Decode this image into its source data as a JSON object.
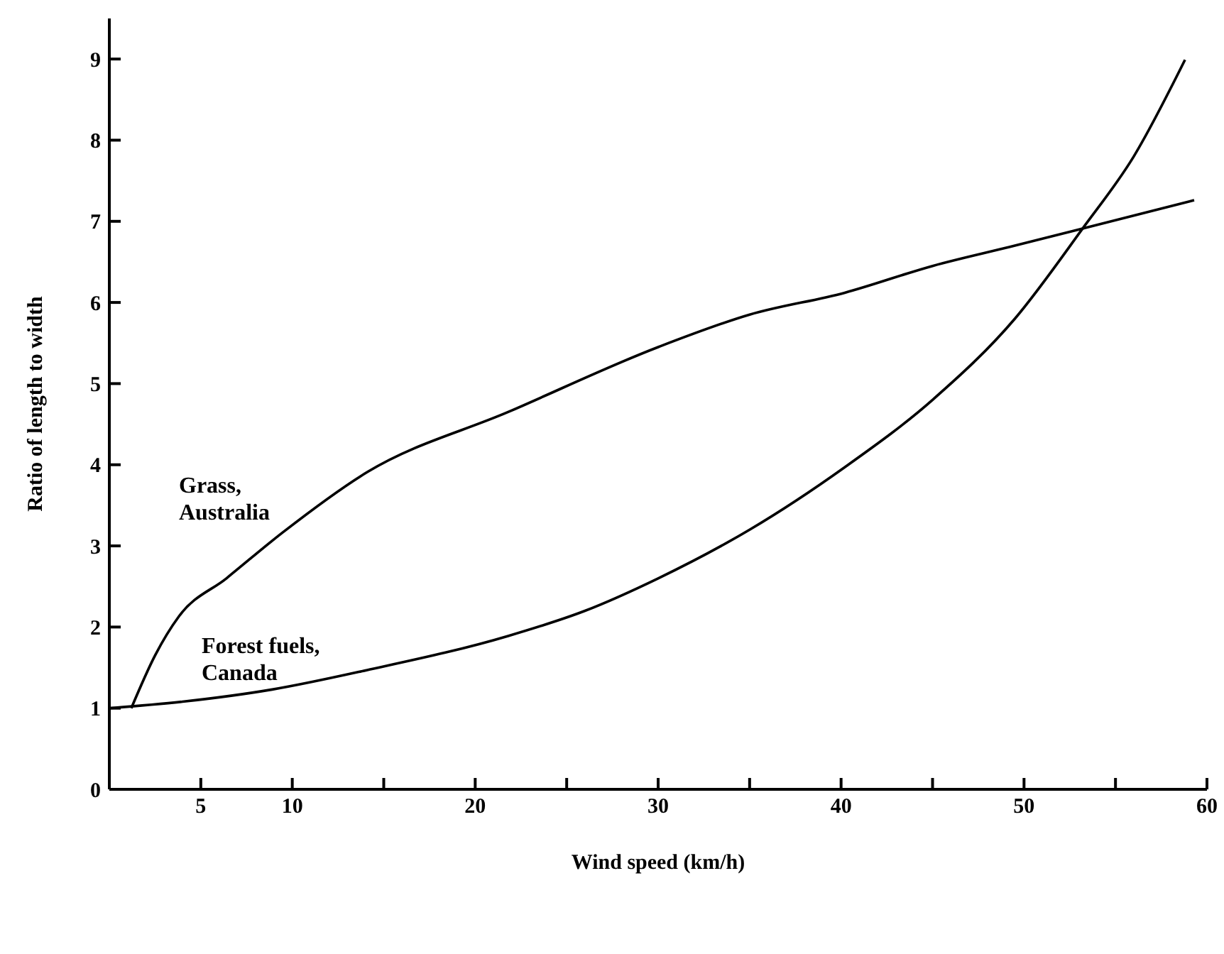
{
  "chart_data": {
    "type": "line",
    "xlabel": "Wind speed (km/h)",
    "ylabel": "Ratio of length to width",
    "xlim": [
      0,
      60
    ],
    "ylim": [
      0,
      9.5
    ],
    "xticks": [
      5,
      10,
      {
        "value": 15,
        "label": null
      },
      20,
      {
        "value": 25,
        "label": null
      },
      30,
      {
        "value": 35,
        "label": null
      },
      40,
      {
        "value": 45,
        "label": null
      },
      50,
      {
        "value": 55,
        "label": null
      },
      60
    ],
    "yticks": [
      0,
      1,
      2,
      3,
      4,
      5,
      6,
      7,
      8,
      9
    ],
    "grid": false,
    "legend": false,
    "marker": "none",
    "line_style": "solid",
    "series": [
      {
        "name": "Grass, Australia",
        "color": "#000000",
        "x": [
          1.2,
          2.5,
          3.8,
          6.4,
          9.5,
          14.1,
          21.8,
          30,
          35,
          40.2,
          45,
          49.5,
          53.2,
          59.3
        ],
        "values": [
          1.0,
          1.65,
          2.13,
          2.6,
          3.17,
          3.91,
          4.65,
          5.45,
          5.85,
          6.12,
          6.45,
          6.7,
          6.91,
          7.26
        ]
      },
      {
        "name": "Forest fuels, Canada",
        "color": "#000000",
        "x": [
          0,
          4,
          8.9,
          14.1,
          21.8,
          26,
          30,
          35,
          40.2,
          45,
          49.5,
          53.2,
          56,
          58.8
        ],
        "values": [
          1.0,
          1.08,
          1.23,
          1.47,
          1.89,
          2.2,
          2.6,
          3.2,
          3.97,
          4.8,
          5.8,
          6.91,
          7.8,
          8.99
        ]
      }
    ]
  }
}
